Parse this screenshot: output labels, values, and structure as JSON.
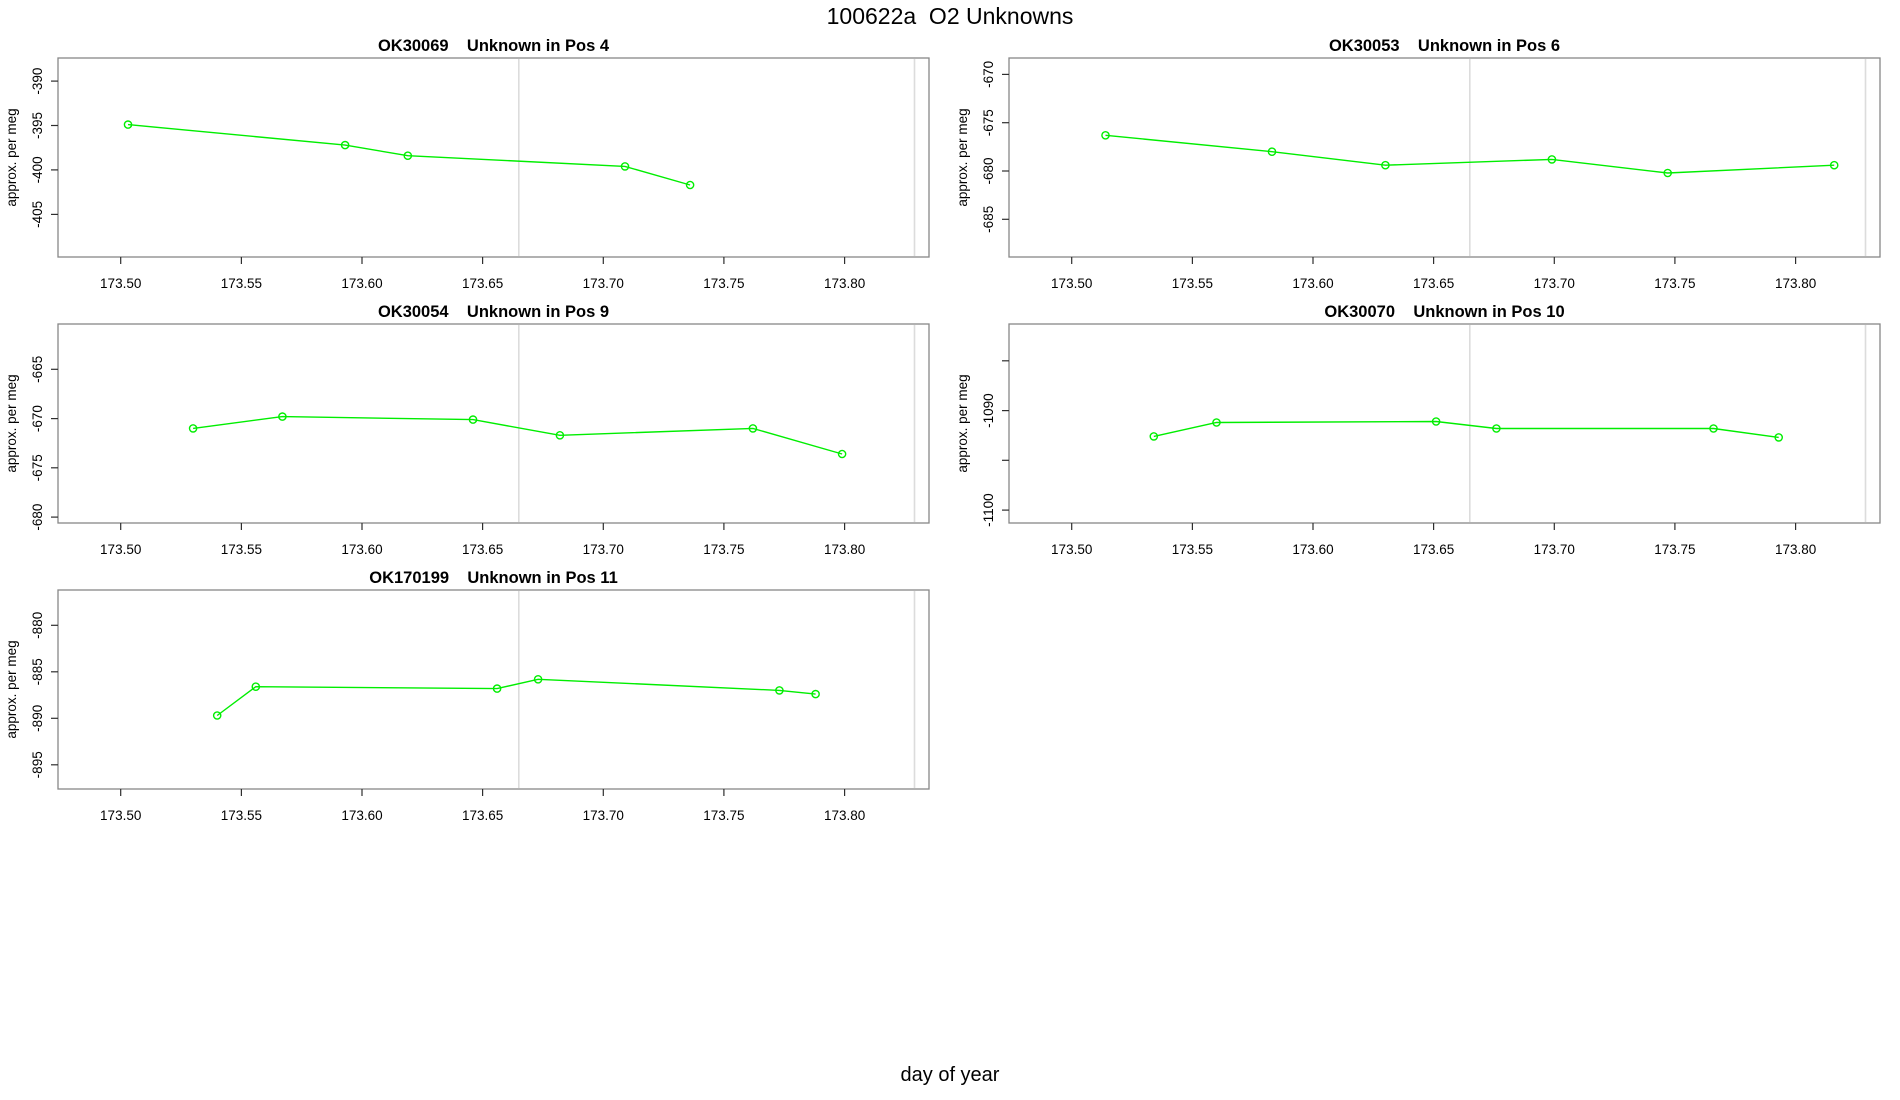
{
  "page": {
    "title": "100622a  O2 Unknowns",
    "xlabel": "day of year",
    "background": "#ffffff"
  },
  "style": {
    "series_color": "#00ee00",
    "guide_line_color": "#dcdcdc",
    "box_color": "#878787",
    "tick_color": "#2e2e2e",
    "text_color": "#000000"
  },
  "chart_data": [
    {
      "type": "line",
      "title": "OK30069    Unknown in Pos 4",
      "ylabel": "approx. per meg",
      "grid": {
        "row": 0,
        "col": 0
      },
      "xlim": [
        173.474,
        173.835
      ],
      "ylim": [
        -409.8,
        -387.4
      ],
      "x_ticks": [
        173.5,
        173.55,
        173.6,
        173.65,
        173.7,
        173.75,
        173.8
      ],
      "x_tick_labels": [
        "173.50",
        "173.55",
        "173.60",
        "173.65",
        "173.70",
        "173.75",
        "173.80"
      ],
      "y_ticks": [
        -405,
        -400,
        -395,
        -390
      ],
      "y_tick_labels": [
        "-405",
        "-400",
        "-395",
        "-390"
      ],
      "guide_x": [
        173.665,
        173.829
      ],
      "x": [
        173.503,
        173.593,
        173.619,
        173.709,
        173.736
      ],
      "y": [
        -394.9,
        -397.2,
        -398.4,
        -399.6,
        -401.7
      ]
    },
    {
      "type": "line",
      "title": "OK30053    Unknown in Pos 6",
      "ylabel": "approx. per meg",
      "grid": {
        "row": 0,
        "col": 1
      },
      "xlim": [
        173.474,
        173.835
      ],
      "ylim": [
        -688.9,
        -668.3
      ],
      "x_ticks": [
        173.5,
        173.55,
        173.6,
        173.65,
        173.7,
        173.75,
        173.8
      ],
      "x_tick_labels": [
        "173.50",
        "173.55",
        "173.60",
        "173.65",
        "173.70",
        "173.75",
        "173.80"
      ],
      "y_ticks": [
        -685,
        -680,
        -675,
        -670
      ],
      "y_tick_labels": [
        "-685",
        "-680",
        "-675",
        "-670"
      ],
      "guide_x": [
        173.665,
        173.829
      ],
      "x": [
        173.514,
        173.583,
        173.63,
        173.699,
        173.747,
        173.816
      ],
      "y": [
        -676.3,
        -678.0,
        -679.4,
        -678.8,
        -680.2,
        -679.4
      ]
    },
    {
      "type": "line",
      "title": "OK30054    Unknown in Pos 9",
      "ylabel": "approx. per meg",
      "grid": {
        "row": 1,
        "col": 0
      },
      "xlim": [
        173.474,
        173.835
      ],
      "ylim": [
        -680.6,
        -660.4
      ],
      "x_ticks": [
        173.5,
        173.55,
        173.6,
        173.65,
        173.7,
        173.75,
        173.8
      ],
      "x_tick_labels": [
        "173.50",
        "173.55",
        "173.60",
        "173.65",
        "173.70",
        "173.75",
        "173.80"
      ],
      "y_ticks": [
        -680,
        -675,
        -670,
        -665
      ],
      "y_tick_labels": [
        "-680",
        "-675",
        "-670",
        "-665"
      ],
      "guide_x": [
        173.665,
        173.829
      ],
      "x": [
        173.53,
        173.567,
        173.646,
        173.682,
        173.762,
        173.799
      ],
      "y": [
        -671.0,
        -669.8,
        -670.1,
        -671.7,
        -671.0,
        -673.6
      ]
    },
    {
      "type": "line",
      "title": "OK30070    Unknown in Pos 10",
      "ylabel": "approx. per meg",
      "grid": {
        "row": 1,
        "col": 1
      },
      "xlim": [
        173.474,
        173.835
      ],
      "ylim": [
        -1101.3,
        -1081.3
      ],
      "x_ticks": [
        173.5,
        173.55,
        173.6,
        173.65,
        173.7,
        173.75,
        173.8
      ],
      "x_tick_labels": [
        "173.50",
        "173.55",
        "173.60",
        "173.65",
        "173.70",
        "173.75",
        "173.80"
      ],
      "y_ticks": [
        -1100,
        -1095,
        -1090,
        -1085
      ],
      "y_tick_labels": [
        "-1100",
        "",
        "-1090",
        ""
      ],
      "guide_x": [
        173.665,
        173.829
      ],
      "x": [
        173.534,
        173.56,
        173.651,
        173.676,
        173.766,
        173.793
      ],
      "y": [
        -1092.6,
        -1091.2,
        -1091.1,
        -1091.8,
        -1091.8,
        -1092.7
      ]
    },
    {
      "type": "line",
      "title": "OK170199    Unknown in Pos 11",
      "ylabel": "approx. per meg",
      "grid": {
        "row": 2,
        "col": 0
      },
      "xlim": [
        173.474,
        173.835
      ],
      "ylim": [
        -897.6,
        -876.2
      ],
      "x_ticks": [
        173.5,
        173.55,
        173.6,
        173.65,
        173.7,
        173.75,
        173.8
      ],
      "x_tick_labels": [
        "173.50",
        "173.55",
        "173.60",
        "173.65",
        "173.70",
        "173.75",
        "173.80"
      ],
      "y_ticks": [
        -895,
        -890,
        -885,
        -880
      ],
      "y_tick_labels": [
        "-895",
        "-890",
        "-885",
        "-880"
      ],
      "guide_x": [
        173.665,
        173.829
      ],
      "x": [
        173.54,
        173.556,
        173.656,
        173.673,
        173.773,
        173.788
      ],
      "y": [
        -889.7,
        -886.6,
        -886.8,
        -885.8,
        -887.0,
        -887.4
      ]
    }
  ]
}
